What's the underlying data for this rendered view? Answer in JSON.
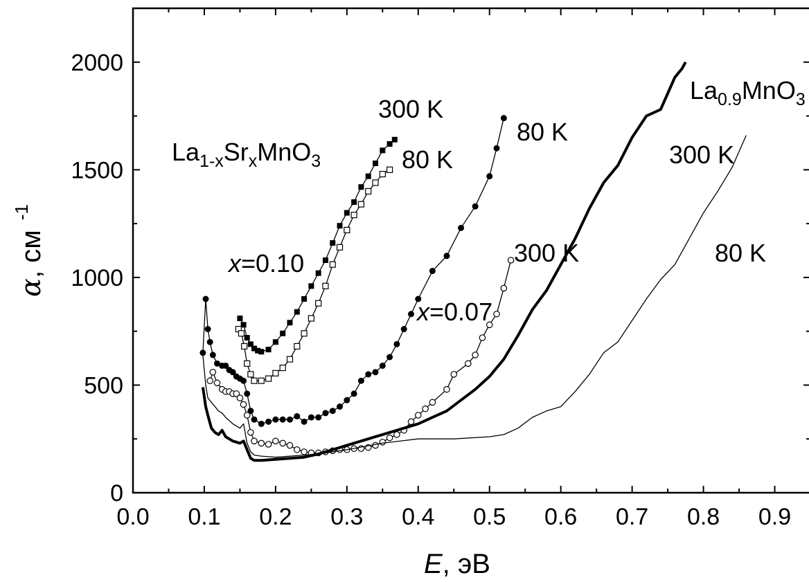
{
  "chart_data": {
    "type": "line",
    "title": "",
    "xlabel": "E, эВ",
    "ylabel": "α, см⁻¹",
    "xlabel_parts": {
      "symbol": "E",
      "unit": ", эВ"
    },
    "ylabel_parts": {
      "symbol": "α",
      "unit": ", см",
      "exponent": "-1"
    },
    "xlim": [
      0.0,
      0.95
    ],
    "ylim": [
      0,
      2250
    ],
    "x_ticks": [
      0.0,
      0.1,
      0.2,
      0.3,
      0.4,
      0.5,
      0.6,
      0.7,
      0.8,
      0.9
    ],
    "x_tick_labels": [
      "0.0",
      "0.1",
      "0.2",
      "0.3",
      "0.4",
      "0.5",
      "0.6",
      "0.7",
      "0.8",
      "0.9"
    ],
    "y_ticks": [
      0,
      500,
      1000,
      1500,
      2000
    ],
    "y_tick_labels": [
      "0",
      "500",
      "1000",
      "1500",
      "2000"
    ],
    "grid": false,
    "legend": "none",
    "annotations": [
      {
        "id": "la-sr",
        "parts": [
          {
            "text": "La",
            "sub": false
          },
          {
            "text": "1-x",
            "sub": true
          },
          {
            "text": "Sr",
            "sub": false
          },
          {
            "text": "x",
            "sub": true
          },
          {
            "text": "MnO",
            "sub": false
          },
          {
            "text": "3",
            "sub": true
          }
        ]
      },
      {
        "id": "la09",
        "parts": [
          {
            "text": "La",
            "sub": false
          },
          {
            "text": "0.9",
            "sub": true
          },
          {
            "text": "MnO",
            "sub": false
          },
          {
            "text": "3",
            "sub": true
          }
        ]
      },
      {
        "id": "x010",
        "parts": [
          {
            "text": "x",
            "italic": true
          },
          {
            "text": "=0.10",
            "italic": false
          }
        ]
      },
      {
        "id": "x007",
        "parts": [
          {
            "text": "x",
            "italic": true
          },
          {
            "text": "=0.07",
            "italic": false
          }
        ]
      },
      {
        "id": "t300-010",
        "text": "300 K"
      },
      {
        "id": "t80-010",
        "text": "80 K"
      },
      {
        "id": "t80-007",
        "text": "80 K"
      },
      {
        "id": "t300-007",
        "text": "300 K"
      },
      {
        "id": "t300-09",
        "text": "300 K"
      },
      {
        "id": "t80-09",
        "text": "80 K"
      }
    ],
    "series": [
      {
        "marker": "filled-square",
        "line": "thin",
        "sample": "x=0.10",
        "temperature": "300 K",
        "x": [
          0.15,
          0.155,
          0.16,
          0.165,
          0.17,
          0.175,
          0.18,
          0.19,
          0.2,
          0.21,
          0.22,
          0.23,
          0.24,
          0.25,
          0.26,
          0.27,
          0.28,
          0.29,
          0.3,
          0.31,
          0.32,
          0.33,
          0.34,
          0.35,
          0.36,
          0.367
        ],
        "y": [
          810,
          780,
          720,
          690,
          670,
          660,
          655,
          665,
          700,
          740,
          790,
          840,
          900,
          960,
          1020,
          1080,
          1160,
          1240,
          1300,
          1350,
          1420,
          1470,
          1530,
          1590,
          1620,
          1640
        ]
      },
      {
        "marker": "open-square",
        "line": "thin",
        "sample": "x=0.10",
        "temperature": "80 K",
        "x": [
          0.148,
          0.152,
          0.156,
          0.16,
          0.165,
          0.17,
          0.18,
          0.19,
          0.2,
          0.21,
          0.22,
          0.23,
          0.24,
          0.25,
          0.26,
          0.27,
          0.28,
          0.29,
          0.3,
          0.31,
          0.32,
          0.33,
          0.34,
          0.35,
          0.36
        ],
        "y": [
          760,
          740,
          680,
          600,
          550,
          520,
          520,
          530,
          555,
          580,
          620,
          680,
          740,
          810,
          880,
          960,
          1060,
          1140,
          1220,
          1290,
          1340,
          1400,
          1440,
          1480,
          1500
        ]
      },
      {
        "marker": "filled-circle",
        "line": "thin",
        "sample": "x=0.07",
        "temperature": "80 K",
        "x": [
          0.098,
          0.102,
          0.105,
          0.108,
          0.112,
          0.118,
          0.125,
          0.13,
          0.135,
          0.14,
          0.145,
          0.15,
          0.155,
          0.16,
          0.165,
          0.17,
          0.18,
          0.19,
          0.2,
          0.21,
          0.22,
          0.23,
          0.24,
          0.25,
          0.26,
          0.27,
          0.28,
          0.29,
          0.3,
          0.31,
          0.32,
          0.33,
          0.34,
          0.35,
          0.36,
          0.37,
          0.38,
          0.39,
          0.4,
          0.42,
          0.44,
          0.46,
          0.48,
          0.5,
          0.51,
          0.52
        ],
        "y": [
          650,
          900,
          760,
          700,
          640,
          600,
          590,
          590,
          570,
          560,
          540,
          530,
          520,
          460,
          380,
          340,
          320,
          330,
          340,
          340,
          340,
          355,
          330,
          350,
          350,
          370,
          380,
          400,
          430,
          460,
          520,
          550,
          560,
          590,
          630,
          690,
          760,
          830,
          900,
          1030,
          1100,
          1230,
          1330,
          1470,
          1600,
          1740
        ]
      },
      {
        "marker": "open-circle",
        "line": "thin",
        "sample": "x=0.07",
        "temperature": "300 K",
        "x": [
          0.108,
          0.112,
          0.118,
          0.125,
          0.13,
          0.135,
          0.14,
          0.145,
          0.15,
          0.155,
          0.16,
          0.165,
          0.17,
          0.18,
          0.19,
          0.2,
          0.21,
          0.22,
          0.23,
          0.24,
          0.25,
          0.26,
          0.27,
          0.28,
          0.29,
          0.3,
          0.31,
          0.32,
          0.33,
          0.34,
          0.35,
          0.36,
          0.37,
          0.38,
          0.39,
          0.4,
          0.41,
          0.42,
          0.44,
          0.45,
          0.47,
          0.48,
          0.49,
          0.5,
          0.51,
          0.52,
          0.53
        ],
        "y": [
          520,
          560,
          510,
          480,
          470,
          470,
          460,
          460,
          440,
          410,
          360,
          280,
          240,
          230,
          225,
          240,
          230,
          220,
          200,
          190,
          185,
          185,
          190,
          195,
          200,
          200,
          205,
          205,
          210,
          220,
          235,
          255,
          270,
          290,
          330,
          360,
          390,
          420,
          480,
          550,
          600,
          640,
          720,
          780,
          830,
          950,
          1080
        ]
      },
      {
        "marker": "none",
        "line": "thick",
        "sample": "La0.9MnO3",
        "temperature": "300 K",
        "x": [
          0.098,
          0.102,
          0.105,
          0.11,
          0.115,
          0.12,
          0.125,
          0.13,
          0.14,
          0.15,
          0.155,
          0.16,
          0.165,
          0.17,
          0.18,
          0.2,
          0.22,
          0.24,
          0.26,
          0.28,
          0.3,
          0.32,
          0.34,
          0.36,
          0.38,
          0.4,
          0.42,
          0.44,
          0.46,
          0.48,
          0.5,
          0.52,
          0.54,
          0.56,
          0.58,
          0.6,
          0.62,
          0.64,
          0.66,
          0.68,
          0.7,
          0.72,
          0.74,
          0.76,
          0.77,
          0.775
        ],
        "y": [
          490,
          400,
          360,
          300,
          280,
          270,
          290,
          260,
          240,
          230,
          240,
          200,
          160,
          150,
          150,
          155,
          160,
          165,
          180,
          200,
          220,
          240,
          260,
          280,
          300,
          320,
          350,
          380,
          430,
          480,
          540,
          620,
          730,
          850,
          940,
          1060,
          1180,
          1320,
          1440,
          1520,
          1650,
          1750,
          1780,
          1930,
          1970,
          2000
        ]
      },
      {
        "marker": "none",
        "line": "thin",
        "sample": "La0.9MnO3",
        "temperature": "80 K",
        "x": [
          0.098,
          0.102,
          0.105,
          0.11,
          0.115,
          0.12,
          0.125,
          0.13,
          0.14,
          0.15,
          0.155,
          0.16,
          0.165,
          0.17,
          0.18,
          0.2,
          0.22,
          0.24,
          0.26,
          0.3,
          0.35,
          0.4,
          0.45,
          0.5,
          0.52,
          0.54,
          0.56,
          0.58,
          0.6,
          0.62,
          0.64,
          0.66,
          0.68,
          0.7,
          0.72,
          0.74,
          0.76,
          0.78,
          0.8,
          0.82,
          0.84,
          0.86
        ],
        "y": [
          640,
          500,
          440,
          420,
          400,
          380,
          370,
          350,
          320,
          300,
          320,
          230,
          190,
          175,
          170,
          165,
          170,
          175,
          180,
          200,
          230,
          250,
          250,
          260,
          270,
          300,
          350,
          380,
          400,
          470,
          550,
          650,
          700,
          800,
          900,
          990,
          1060,
          1180,
          1300,
          1400,
          1510,
          1660
        ]
      }
    ]
  }
}
